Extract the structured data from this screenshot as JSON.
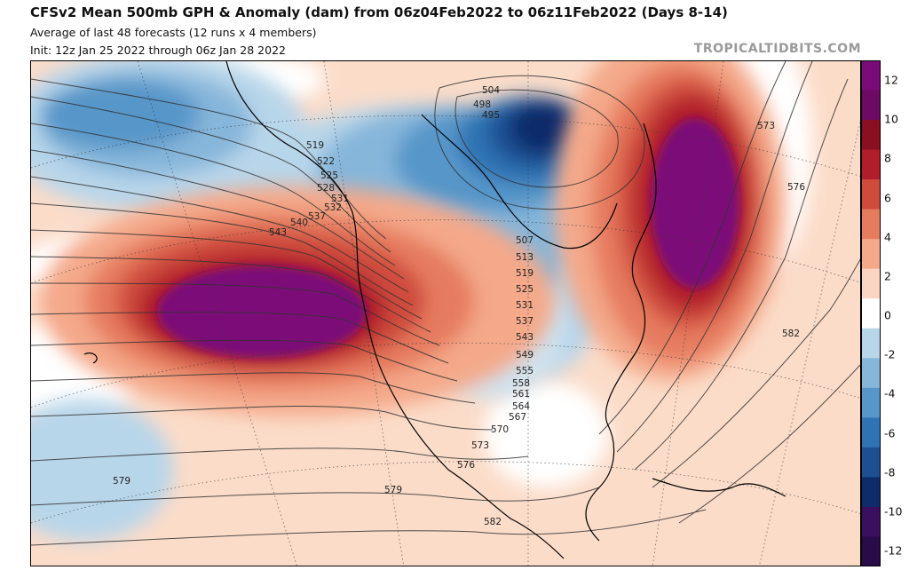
{
  "header": {
    "title": "CFSv2 Mean 500mb GPH & Anomaly (dam) from 06z04Feb2022 to 06z11Feb2022 (Days 8-14)",
    "subtitle": "Average of last 48 forecasts (12 runs x 4 members)",
    "init": "Init: 12z Jan 25 2022 through 06z Jan 28 2022",
    "watermark": "TROPICALTIDBITS.COM"
  },
  "colorbar": {
    "ticks": [
      "12",
      "10",
      "8",
      "6",
      "4",
      "2",
      "0",
      "-2",
      "-4",
      "-6",
      "-8",
      "-10",
      "-12"
    ],
    "colors": [
      "#2a0b4a",
      "#3a0f5f",
      "#0f2c6a",
      "#1e4f93",
      "#2f73b4",
      "#5796c9",
      "#86b6da",
      "#b8d6ea",
      "#ffffff",
      "#fbd5c3",
      "#f4a98a",
      "#e67c5e",
      "#cf4b3c",
      "#b01e2b",
      "#8a0f20",
      "#6d0a63",
      "#7b0b78"
    ]
  },
  "contours": {
    "labels": [
      "504",
      "498",
      "495",
      "519",
      "522",
      "525",
      "528",
      "531",
      "532",
      "537",
      "540",
      "543",
      "507",
      "513",
      "519",
      "525",
      "531",
      "537",
      "543",
      "549",
      "555",
      "558",
      "561",
      "564",
      "567",
      "570",
      "573",
      "576",
      "579",
      "579",
      "582",
      "582",
      "573",
      "576"
    ]
  }
}
